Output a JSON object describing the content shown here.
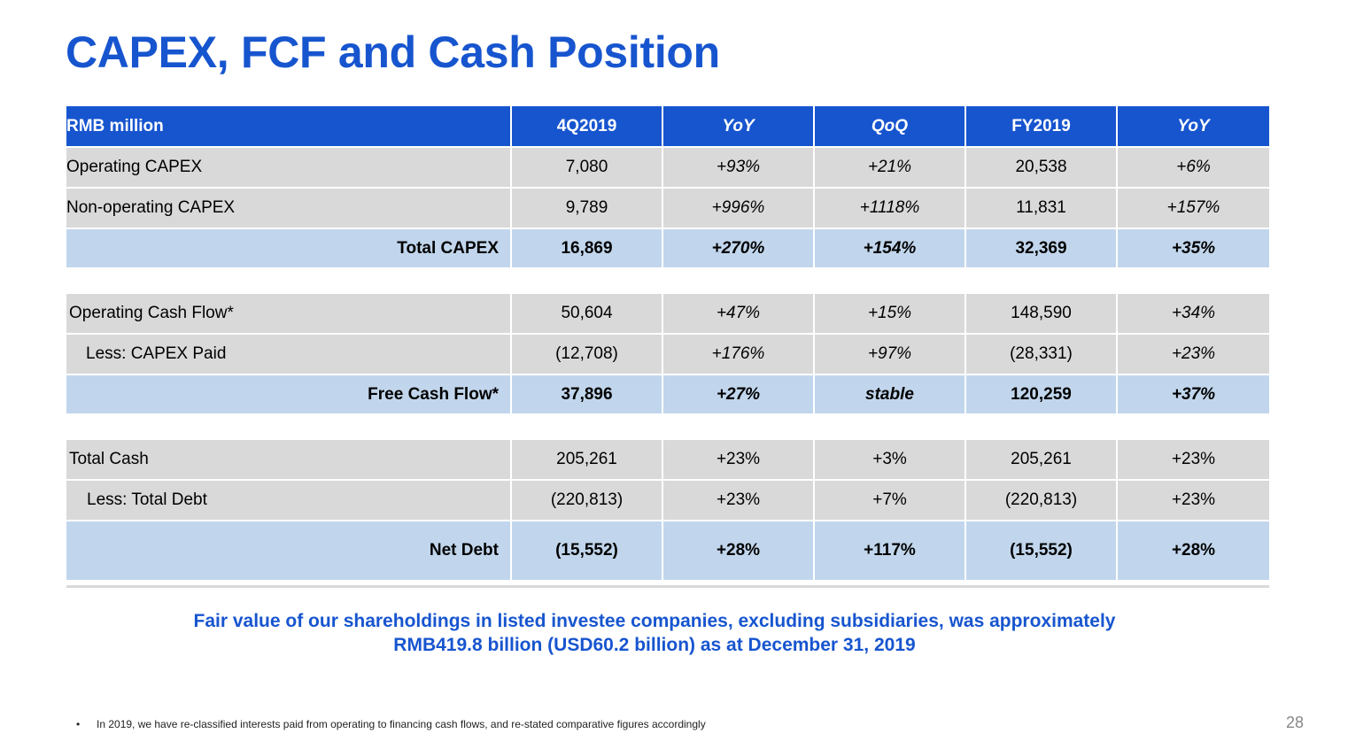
{
  "title": "CAPEX, FCF and Cash Position",
  "table": {
    "header": [
      "RMB million",
      "4Q2019",
      "YoY",
      "QoQ",
      "FY2019",
      "YoY"
    ],
    "capex": {
      "operating": [
        "Operating CAPEX",
        "7,080",
        "+93%",
        "+21%",
        "20,538",
        "+6%"
      ],
      "non_operating": [
        "Non-operating CAPEX",
        "9,789",
        "+996%",
        "+1118%",
        "11,831",
        "+157%"
      ],
      "total": [
        "Total CAPEX",
        "16,869",
        "+270%",
        "+154%",
        "32,369",
        "+35%"
      ]
    },
    "fcf": {
      "operating_cash_flow": [
        "Operating Cash Flow*",
        "50,604",
        "+47%",
        "+15%",
        "148,590",
        "+34%"
      ],
      "capex_paid": [
        "Less: CAPEX Paid",
        "(12,708)",
        "+176%",
        "+97%",
        "(28,331)",
        "+23%"
      ],
      "free_cash_flow": [
        "Free Cash Flow*",
        "37,896",
        "+27%",
        "stable",
        "120,259",
        "+37%"
      ]
    },
    "cash": {
      "total_cash": [
        "Total Cash",
        "205,261",
        "+23%",
        "+3%",
        "205,261",
        "+23%"
      ],
      "total_debt": [
        "Less: Total Debt",
        "(220,813)",
        "+23%",
        "+7%",
        "(220,813)",
        "+23%"
      ],
      "net_debt": [
        "Net Debt",
        "(15,552)",
        "+28%",
        "+117%",
        "(15,552)",
        "+28%"
      ]
    }
  },
  "note_line1": "Fair value of our shareholdings in listed investee companies, excluding subsidiaries, was approximately",
  "note_line2": "RMB419.8 billion (USD60.2 billion) as at December 31, 2019",
  "footnote_bullet": "•",
  "footnote": "In 2019, we have re-classified interests paid from operating to financing cash flows, and re-stated comparative figures accordingly",
  "page_number": "28",
  "colors": {
    "accent": "#1755cf",
    "row_gray": "#d9d9d9",
    "row_total": "#c1d6ec"
  }
}
